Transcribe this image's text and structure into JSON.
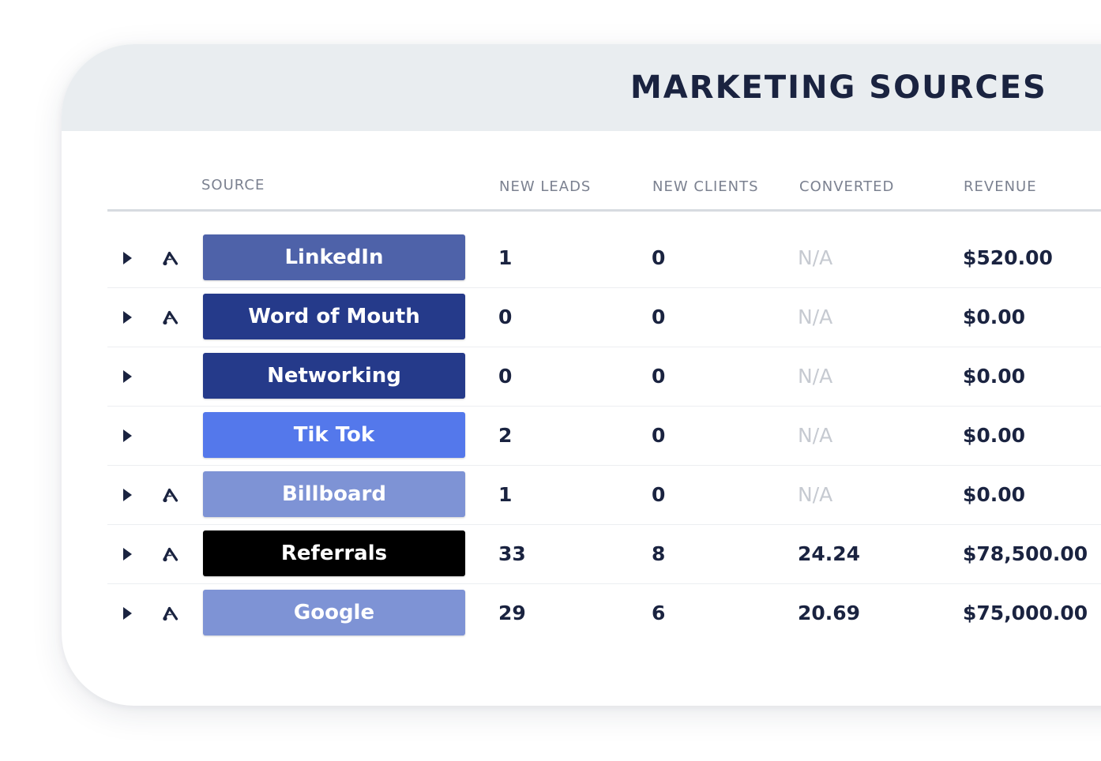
{
  "title": "MARKETING SOURCES",
  "columns": {
    "source": "SOURCE",
    "new_leads": "NEW LEADS",
    "new_clients": "NEW CLIENTS",
    "converted": "CONVERTED",
    "revenue": "REVENUE"
  },
  "rows": [
    {
      "source": "LinkedIn",
      "color": "#4e62a9",
      "ads_icon": true,
      "new_leads": "1",
      "new_clients": "0",
      "converted": "N/A",
      "revenue": "$520.00"
    },
    {
      "source": "Word of Mouth",
      "color": "#253a8a",
      "ads_icon": true,
      "new_leads": "0",
      "new_clients": "0",
      "converted": "N/A",
      "revenue": "$0.00"
    },
    {
      "source": "Networking",
      "color": "#253a8a",
      "ads_icon": false,
      "new_leads": "0",
      "new_clients": "0",
      "converted": "N/A",
      "revenue": "$0.00"
    },
    {
      "source": "Tik Tok",
      "color": "#5478eb",
      "ads_icon": false,
      "new_leads": "2",
      "new_clients": "0",
      "converted": "N/A",
      "revenue": "$0.00"
    },
    {
      "source": "Billboard",
      "color": "#7e93d5",
      "ads_icon": true,
      "new_leads": "1",
      "new_clients": "0",
      "converted": "N/A",
      "revenue": "$0.00"
    },
    {
      "source": "Referrals",
      "color": "#000000",
      "ads_icon": true,
      "new_leads": "33",
      "new_clients": "8",
      "converted": "24.24",
      "revenue": "$78,500.00"
    },
    {
      "source": "Google",
      "color": "#7e93d5",
      "ads_icon": true,
      "new_leads": "29",
      "new_clients": "6",
      "converted": "20.69",
      "revenue": "$75,000.00"
    }
  ],
  "icons": {
    "expand": "triangle-right-icon",
    "ads": "google-ads-icon"
  }
}
